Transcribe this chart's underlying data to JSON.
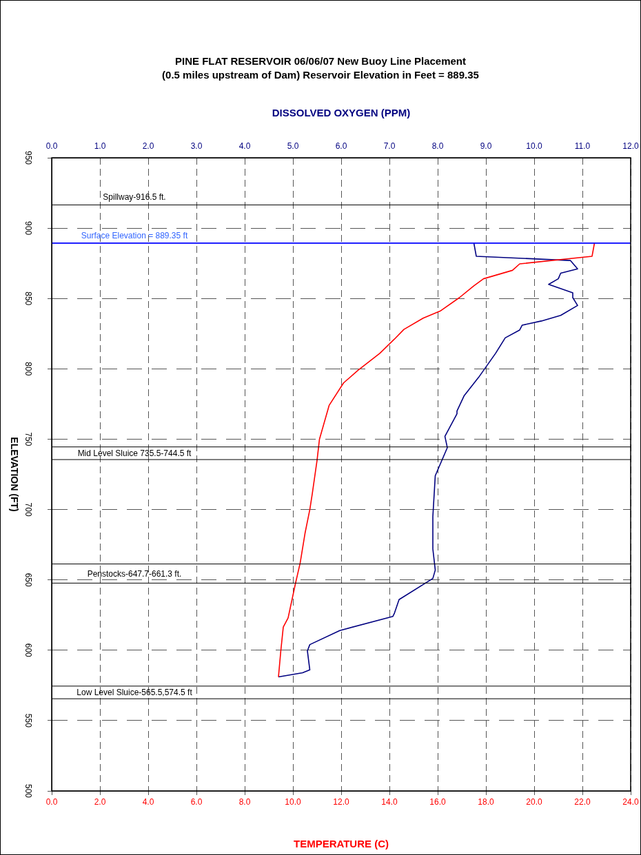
{
  "chart_data": {
    "type": "line",
    "title": "PINE FLAT RESERVOIR 06/06/07 New Buoy Line Placement",
    "subtitle": "(0.5 miles upstream of Dam)  Reservoir Elevation in Feet = 889.35",
    "xlabel": "TEMPERATURE (C)",
    "x2label": "DISSOLVED OXYGEN (PPM)",
    "ylabel": "ELEVATION (FT)",
    "series": [
      {
        "color": "#ff0000",
        "x": [
          22.5,
          22.4,
          19.4,
          19.1,
          17.9,
          17.5,
          16.9,
          16.1,
          15.4,
          14.6,
          14.2,
          13.6,
          12.7,
          12.1,
          11.5,
          11.4,
          11.1,
          11.0,
          10.8,
          10.7,
          10.5,
          10.3,
          10.1,
          9.8,
          9.6,
          9.5,
          9.4
        ],
        "values": [
          889.4,
          880,
          874.6,
          870,
          864,
          859,
          850.6,
          841,
          836,
          828,
          821,
          811,
          799,
          790,
          774,
          768,
          750,
          735,
          711,
          700,
          683,
          662,
          647,
          623,
          616.5,
          600,
          581
        ]
      },
      {
        "color": "#000080",
        "axis": "x2",
        "x": [
          8.75,
          8.8,
          10.75,
          10.9,
          10.55,
          10.5,
          10.3,
          10.8,
          10.8,
          10.9,
          10.55,
          10.15,
          9.75,
          9.7,
          9.4,
          9.2,
          8.85,
          8.55,
          8.4,
          8.4,
          8.15,
          8.2,
          7.95,
          7.9,
          7.9,
          7.95,
          7.9,
          7.2,
          7.1,
          7.07,
          5.97,
          5.35,
          5.3,
          5.35,
          5.2,
          4.7
        ],
        "values": [
          889.4,
          880,
          877,
          871,
          868,
          864,
          860,
          854,
          850.6,
          845,
          838,
          834,
          831,
          827.6,
          822,
          811,
          794,
          781,
          770,
          768,
          752,
          744,
          724,
          695,
          672,
          657,
          651,
          636,
          626,
          624,
          614,
          604,
          599.5,
          586,
          584,
          581
        ]
      }
    ],
    "xlim": [
      0,
      24
    ],
    "xticks": [
      {
        "value": 0,
        "label": "0.0"
      },
      {
        "value": 2,
        "label": "2.0"
      },
      {
        "value": 4,
        "label": "4.0"
      },
      {
        "value": 6,
        "label": "6.0"
      },
      {
        "value": 8,
        "label": "8.0"
      },
      {
        "value": 10,
        "label": "10.0"
      },
      {
        "value": 12,
        "label": "12.0"
      },
      {
        "value": 14,
        "label": "14.0"
      },
      {
        "value": 16,
        "label": "16.0"
      },
      {
        "value": 18,
        "label": "18.0"
      },
      {
        "value": 20,
        "label": "20.0"
      },
      {
        "value": 22,
        "label": "22.0"
      },
      {
        "value": 24,
        "label": "24.0"
      }
    ],
    "x2lim": [
      0,
      12
    ],
    "x2ticks": [
      {
        "value": 0,
        "label": "0.0"
      },
      {
        "value": 1,
        "label": "1.0"
      },
      {
        "value": 2,
        "label": "2.0"
      },
      {
        "value": 3,
        "label": "3.0"
      },
      {
        "value": 4,
        "label": "4.0"
      },
      {
        "value": 5,
        "label": "5.0"
      },
      {
        "value": 6,
        "label": "6.0"
      },
      {
        "value": 7,
        "label": "7.0"
      },
      {
        "value": 8,
        "label": "8.0"
      },
      {
        "value": 9,
        "label": "9.0"
      },
      {
        "value": 10,
        "label": "10.0"
      },
      {
        "value": 11,
        "label": "11.0"
      },
      {
        "value": 12,
        "label": "12.0"
      }
    ],
    "ylim": [
      500,
      950
    ],
    "yticks": [
      500,
      550,
      600,
      650,
      700,
      750,
      800,
      850,
      900,
      950
    ],
    "ref_lines": [
      {
        "axis": "y",
        "value": 916.5,
        "label": "Spillway-916.5 ft.",
        "color": "#000000"
      },
      {
        "axis": "y",
        "value": 889.35,
        "label": "Surface Elevation = 889.35 ft",
        "color": "#0000ff"
      },
      {
        "axis": "y",
        "value": 744.5,
        "label": "Mid Level Sluice 735.5-744.5 ft",
        "color": "#000000"
      },
      {
        "axis": "y",
        "value": 735.5,
        "label": null,
        "color": "#000000"
      },
      {
        "axis": "y",
        "value": 661.3,
        "label": "Penstocks-647.7-661.3 ft.",
        "color": "#000000"
      },
      {
        "axis": "y",
        "value": 647.7,
        "label": null,
        "color": "#000000"
      },
      {
        "axis": "y",
        "value": 574.5,
        "label": "Low Level Sluice-565.5,574.5 ft",
        "color": "#000000"
      },
      {
        "axis": "y",
        "value": 565.5,
        "label": null,
        "color": "#000000"
      }
    ],
    "grid": true,
    "legend": false,
    "marker": "none",
    "line_style": "solid"
  }
}
